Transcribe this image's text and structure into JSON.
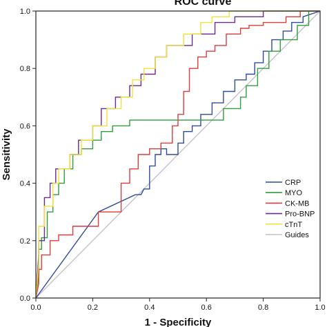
{
  "chart_data": {
    "type": "line",
    "title": "ROC curve",
    "xlabel": "1 - Specificity",
    "ylabel": "Sensitivity",
    "xlim": [
      0,
      1
    ],
    "ylim": [
      0,
      1
    ],
    "xticks": [
      "0.0",
      "0.2",
      "0.4",
      "0.6",
      "0.8",
      "1.0"
    ],
    "yticks": [
      "0.0",
      "0.2",
      "0.4",
      "0.6",
      "0.8",
      "1.0"
    ],
    "grid": false,
    "legend_position": "bottom-right",
    "series": [
      {
        "name": "CRP",
        "color": "#2e4a9e",
        "x": [
          0,
          0.22,
          0.35,
          0.37,
          0.38,
          0.4,
          0.4,
          0.42,
          0.42,
          0.44,
          0.44,
          0.46,
          0.46,
          0.5,
          0.5,
          0.52,
          0.52,
          0.55,
          0.55,
          0.58,
          0.58,
          0.62,
          0.62,
          0.66,
          0.66,
          0.7,
          0.7,
          0.74,
          0.74,
          0.77,
          0.77,
          0.8,
          0.8,
          0.83,
          0.83,
          0.87,
          0.87,
          0.9,
          0.9,
          0.94,
          0.94,
          1.0
        ],
        "y": [
          0,
          0.3,
          0.36,
          0.36,
          0.38,
          0.38,
          0.46,
          0.46,
          0.5,
          0.5,
          0.52,
          0.52,
          0.5,
          0.5,
          0.54,
          0.54,
          0.58,
          0.58,
          0.6,
          0.6,
          0.64,
          0.64,
          0.68,
          0.68,
          0.72,
          0.72,
          0.76,
          0.76,
          0.78,
          0.78,
          0.82,
          0.82,
          0.86,
          0.86,
          0.9,
          0.9,
          0.93,
          0.93,
          0.96,
          0.96,
          0.98,
          1.0
        ]
      },
      {
        "name": "MYO",
        "color": "#2e9e3a",
        "x": [
          0,
          0.01,
          0.01,
          0.02,
          0.02,
          0.04,
          0.04,
          0.06,
          0.06,
          0.08,
          0.08,
          0.1,
          0.1,
          0.13,
          0.13,
          0.16,
          0.16,
          0.2,
          0.2,
          0.23,
          0.23,
          0.27,
          0.27,
          0.33,
          0.33,
          0.37,
          0.37,
          0.42,
          0.42,
          0.66,
          0.66,
          0.72,
          0.72,
          0.74,
          0.74,
          0.78,
          0.78,
          0.82,
          0.82,
          0.86,
          0.86,
          0.92,
          0.92,
          0.96,
          0.96,
          1.0
        ],
        "y": [
          0,
          0.08,
          0.17,
          0.17,
          0.21,
          0.21,
          0.3,
          0.3,
          0.36,
          0.36,
          0.4,
          0.4,
          0.45,
          0.45,
          0.5,
          0.5,
          0.52,
          0.52,
          0.55,
          0.55,
          0.58,
          0.58,
          0.6,
          0.6,
          0.62,
          0.62,
          0.62,
          0.62,
          0.62,
          0.62,
          0.66,
          0.66,
          0.7,
          0.7,
          0.74,
          0.74,
          0.8,
          0.8,
          0.86,
          0.86,
          0.9,
          0.9,
          0.95,
          0.95,
          1.0,
          1.0
        ]
      },
      {
        "name": "CK-MB",
        "color": "#e03a3a",
        "x": [
          0,
          0.01,
          0.01,
          0.02,
          0.02,
          0.05,
          0.05,
          0.08,
          0.08,
          0.13,
          0.13,
          0.22,
          0.22,
          0.3,
          0.3,
          0.33,
          0.33,
          0.36,
          0.36,
          0.4,
          0.4,
          0.44,
          0.44,
          0.48,
          0.48,
          0.5,
          0.5,
          0.52,
          0.52,
          0.54,
          0.54,
          0.57,
          0.57,
          0.6,
          0.6,
          0.63,
          0.63,
          0.67,
          0.67,
          0.72,
          0.72,
          0.75,
          0.75,
          0.8,
          0.8,
          0.88,
          0.88,
          0.93,
          0.93,
          1.0
        ],
        "y": [
          0,
          0.05,
          0.1,
          0.1,
          0.15,
          0.15,
          0.2,
          0.2,
          0.22,
          0.22,
          0.25,
          0.25,
          0.3,
          0.3,
          0.4,
          0.4,
          0.45,
          0.45,
          0.5,
          0.5,
          0.52,
          0.52,
          0.54,
          0.54,
          0.6,
          0.6,
          0.64,
          0.64,
          0.72,
          0.72,
          0.8,
          0.8,
          0.84,
          0.84,
          0.86,
          0.86,
          0.88,
          0.88,
          0.92,
          0.92,
          0.94,
          0.94,
          0.95,
          0.95,
          0.96,
          0.96,
          0.98,
          0.98,
          1.0,
          1.0
        ]
      },
      {
        "name": "Pro-BNP",
        "color": "#6a2a8e",
        "x": [
          0,
          0.01,
          0.01,
          0.03,
          0.03,
          0.05,
          0.05,
          0.07,
          0.07,
          0.12,
          0.12,
          0.15,
          0.15,
          0.2,
          0.2,
          0.23,
          0.23,
          0.28,
          0.28,
          0.33,
          0.33,
          0.37,
          0.37,
          0.42,
          0.42,
          0.46,
          0.46,
          0.55,
          0.55,
          0.63,
          0.63,
          0.7,
          0.7,
          0.8,
          0.8,
          1.0
        ],
        "y": [
          0,
          0.15,
          0.2,
          0.2,
          0.35,
          0.35,
          0.4,
          0.4,
          0.45,
          0.45,
          0.5,
          0.5,
          0.55,
          0.55,
          0.6,
          0.6,
          0.66,
          0.66,
          0.7,
          0.7,
          0.74,
          0.74,
          0.78,
          0.78,
          0.84,
          0.84,
          0.88,
          0.88,
          0.92,
          0.92,
          0.96,
          0.96,
          0.98,
          0.98,
          1.0,
          1.0
        ]
      },
      {
        "name": "cTnT",
        "color": "#f0e23a",
        "x": [
          0,
          0.01,
          0.01,
          0.03,
          0.03,
          0.06,
          0.06,
          0.08,
          0.08,
          0.12,
          0.12,
          0.16,
          0.16,
          0.2,
          0.2,
          0.25,
          0.25,
          0.3,
          0.3,
          0.34,
          0.34,
          0.38,
          0.38,
          0.42,
          0.42,
          0.46,
          0.46,
          0.52,
          0.52,
          0.58,
          0.58,
          0.62,
          0.62,
          0.68,
          0.68,
          0.74,
          0.74,
          0.8,
          0.8,
          1.0
        ],
        "y": [
          0,
          0.12,
          0.25,
          0.25,
          0.32,
          0.32,
          0.4,
          0.4,
          0.45,
          0.45,
          0.5,
          0.5,
          0.55,
          0.55,
          0.6,
          0.6,
          0.66,
          0.66,
          0.7,
          0.7,
          0.76,
          0.76,
          0.8,
          0.8,
          0.84,
          0.84,
          0.88,
          0.88,
          0.92,
          0.92,
          0.96,
          0.96,
          0.98,
          0.98,
          1.0,
          1.0,
          1.0,
          1.0,
          1.0,
          1.0
        ]
      },
      {
        "name": "Guides",
        "color": "#c2c2cc",
        "x": [
          0,
          1
        ],
        "y": [
          0,
          1
        ]
      }
    ]
  }
}
